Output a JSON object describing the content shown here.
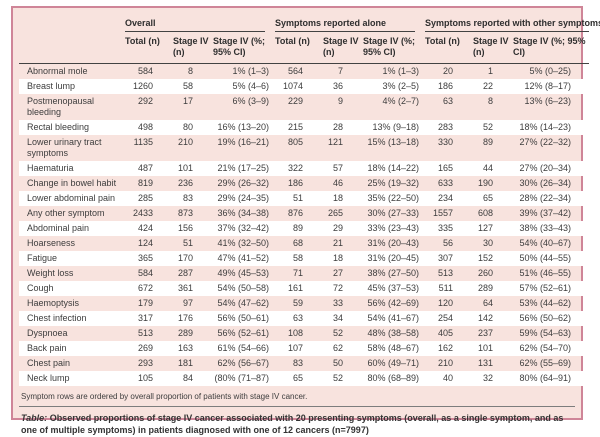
{
  "table": {
    "groups": [
      {
        "label": "Overall"
      },
      {
        "label": "Symptoms reported alone"
      },
      {
        "label": "Symptoms reported with other symptoms"
      }
    ],
    "subheaders": [
      "Total (n)",
      "Stage IV (n)",
      "Stage IV (%; 95% CI)"
    ],
    "rows": [
      {
        "symptom": "Abnormal mole",
        "cells": [
          "584",
          "8",
          "1% (1–3)",
          "564",
          "7",
          "1% (1–3)",
          "20",
          "1",
          "5% (0–25)"
        ]
      },
      {
        "symptom": "Breast lump",
        "cells": [
          "1260",
          "58",
          "5% (4–6)",
          "1074",
          "36",
          "3% (2–5)",
          "186",
          "22",
          "12% (8–17)"
        ]
      },
      {
        "symptom": "Postmenopausal bleeding",
        "cells": [
          "292",
          "17",
          "6% (3–9)",
          "229",
          "9",
          "4% (2–7)",
          "63",
          "8",
          "13% (6–23)"
        ]
      },
      {
        "symptom": "Rectal bleeding",
        "cells": [
          "498",
          "80",
          "16% (13–20)",
          "215",
          "28",
          "13% (9–18)",
          "283",
          "52",
          "18% (14–23)"
        ]
      },
      {
        "symptom": "Lower urinary tract symptoms",
        "cells": [
          "1135",
          "210",
          "19% (16–21)",
          "805",
          "121",
          "15% (13–18)",
          "330",
          "89",
          "27% (22–32)"
        ]
      },
      {
        "symptom": "Haematuria",
        "cells": [
          "487",
          "101",
          "21% (17–25)",
          "322",
          "57",
          "18% (14–22)",
          "165",
          "44",
          "27% (20–34)"
        ]
      },
      {
        "symptom": "Change in bowel habit",
        "cells": [
          "819",
          "236",
          "29% (26–32)",
          "186",
          "46",
          "25% (19–32)",
          "633",
          "190",
          "30% (26–34)"
        ]
      },
      {
        "symptom": "Lower abdominal pain",
        "cells": [
          "285",
          "83",
          "29% (24–35)",
          "51",
          "18",
          "35% (22–50)",
          "234",
          "65",
          "28% (22–34)"
        ]
      },
      {
        "symptom": "Any other symptom",
        "cells": [
          "2433",
          "873",
          "36% (34–38)",
          "876",
          "265",
          "30% (27–33)",
          "1557",
          "608",
          "39% (37–42)"
        ]
      },
      {
        "symptom": "Abdominal pain",
        "cells": [
          "424",
          "156",
          "37% (32–42)",
          "89",
          "29",
          "33% (23–43)",
          "335",
          "127",
          "38% (33–43)"
        ]
      },
      {
        "symptom": "Hoarseness",
        "cells": [
          "124",
          "51",
          "41% (32–50)",
          "68",
          "21",
          "31% (20–43)",
          "56",
          "30",
          "54% (40–67)"
        ]
      },
      {
        "symptom": "Fatigue",
        "cells": [
          "365",
          "170",
          "47% (41–52)",
          "58",
          "18",
          "31% (20–45)",
          "307",
          "152",
          "50% (44–55)"
        ]
      },
      {
        "symptom": "Weight loss",
        "cells": [
          "584",
          "287",
          "49% (45–53)",
          "71",
          "27",
          "38% (27–50)",
          "513",
          "260",
          "51% (46–55)"
        ]
      },
      {
        "symptom": "Cough",
        "cells": [
          "672",
          "361",
          "54% (50–58)",
          "161",
          "72",
          "45% (37–53)",
          "511",
          "289",
          "57% (52–61)"
        ]
      },
      {
        "symptom": "Haemoptysis",
        "cells": [
          "179",
          "97",
          "54% (47–62)",
          "59",
          "33",
          "56% (42–69)",
          "120",
          "64",
          "53% (44–62)"
        ]
      },
      {
        "symptom": "Chest infection",
        "cells": [
          "317",
          "176",
          "56% (50–61)",
          "63",
          "34",
          "54% (41–67)",
          "254",
          "142",
          "56% (50–62)"
        ]
      },
      {
        "symptom": "Dyspnoea",
        "cells": [
          "513",
          "289",
          "56% (52–61)",
          "108",
          "52",
          "48% (38–58)",
          "405",
          "237",
          "59% (54–63)"
        ]
      },
      {
        "symptom": "Back pain",
        "cells": [
          "269",
          "163",
          "61% (54–66)",
          "107",
          "62",
          "58% (48–67)",
          "162",
          "101",
          "62% (54–70)"
        ]
      },
      {
        "symptom": "Chest pain",
        "cells": [
          "293",
          "181",
          "62% (56–67)",
          "83",
          "50",
          "60% (49–71)",
          "210",
          "131",
          "62% (55–69)"
        ]
      },
      {
        "symptom": "Neck lump",
        "cells": [
          "105",
          "84",
          "(80% (71–87)",
          "65",
          "52",
          "80% (68–89)",
          "40",
          "32",
          "80% (64–91)"
        ]
      }
    ],
    "note": "Symptom rows are ordered by overall proportion of patients with stage IV cancer.",
    "caption_prefix": "Table:",
    "caption_text": "Observed proportions of stage IV cancer associated with 20 presenting symptoms (overall, as a single symptom, and as one of multiple symptoms) in patients diagnosed with one of 12 cancers (n=7997)"
  },
  "colors": {
    "card_background": "#f8e3de",
    "stripe_white": "#ffffff",
    "frame_border": "#cf8598",
    "rule_dark": "#424242",
    "text": "#3d3d3d"
  }
}
